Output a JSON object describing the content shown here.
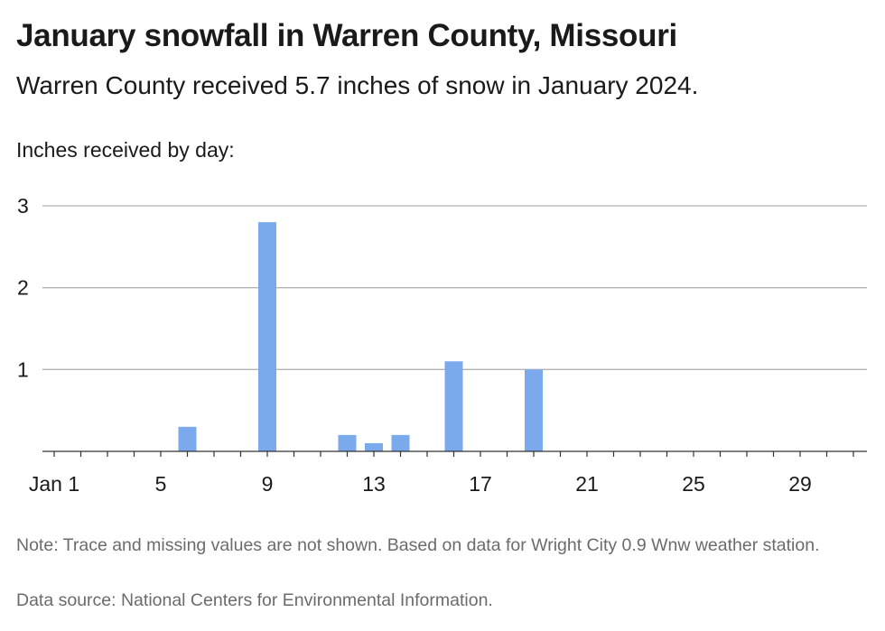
{
  "title": "January snowfall in Warren County, Missouri",
  "subtitle": "Warren County received 5.7 inches of snow in January 2024.",
  "notes": {
    "note": "Note: Trace and missing values are not shown. Based on data for Wright City 0.9 Wnw weather station.",
    "source": "Data source: National Centers for Environmental Information."
  },
  "colors": {
    "bar": "#7aaaeb",
    "grid": "#b3b3b3",
    "axis": "#333333",
    "text": "#1a1a1a",
    "footer": "#6b6b6b"
  },
  "chart_data": {
    "type": "bar",
    "title": "January snowfall in Warren County, Missouri",
    "ylabel": "Inches received by day:",
    "xlabel": "",
    "x": [
      1,
      2,
      3,
      4,
      5,
      6,
      7,
      8,
      9,
      10,
      11,
      12,
      13,
      14,
      15,
      16,
      17,
      18,
      19,
      20,
      21,
      22,
      23,
      24,
      25,
      26,
      27,
      28,
      29,
      30,
      31
    ],
    "values": [
      0,
      0,
      0,
      0,
      0,
      0.3,
      0,
      0,
      2.8,
      0,
      0,
      0.2,
      0.1,
      0.2,
      0,
      1.1,
      0,
      0,
      1.0,
      0,
      0,
      0,
      0,
      0,
      0,
      0,
      0,
      0,
      0,
      0,
      0
    ],
    "x_ticks": [
      1,
      5,
      9,
      13,
      17,
      21,
      25,
      29
    ],
    "x_tick_labels": [
      "Jan 1",
      "5",
      "9",
      "13",
      "17",
      "21",
      "25",
      "29"
    ],
    "y_ticks": [
      1,
      2,
      3
    ],
    "ylim": [
      0,
      3
    ],
    "xlim": [
      1,
      31
    ],
    "grid": true,
    "legend": "none"
  }
}
